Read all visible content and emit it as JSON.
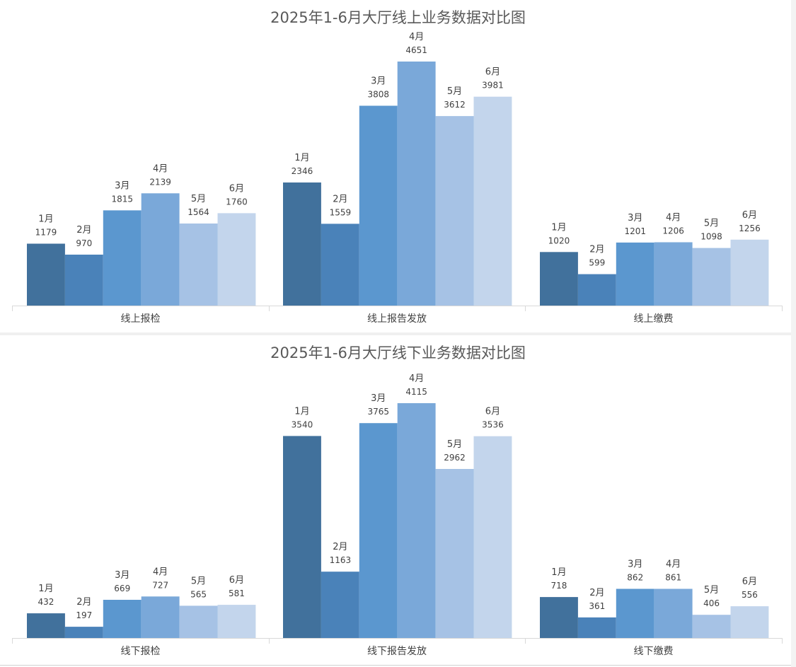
{
  "colors": {
    "months": [
      "#41719c",
      "#4a82b9",
      "#5b97cf",
      "#7aa8d9",
      "#a6c2e5",
      "#c3d5ec"
    ],
    "axis": "#d9d9d9",
    "label_text": "#404040"
  },
  "chart_data": [
    {
      "type": "bar",
      "title": "2025年1-6月大厅线上业务数据对比图",
      "categories": [
        "线上报检",
        "线上报告发放",
        "线上缴费"
      ],
      "series": [
        {
          "name": "1月",
          "values": [
            1179,
            2346,
            1020
          ]
        },
        {
          "name": "2月",
          "values": [
            970,
            1559,
            599
          ]
        },
        {
          "name": "3月",
          "values": [
            1815,
            3808,
            1201
          ]
        },
        {
          "name": "4月",
          "values": [
            2139,
            4651,
            1206
          ]
        },
        {
          "name": "5月",
          "values": [
            1564,
            3612,
            1098
          ]
        },
        {
          "name": "6月",
          "values": [
            1760,
            3981,
            1256
          ]
        }
      ],
      "ylim": [
        0,
        4651
      ],
      "grid": false,
      "legend": "none"
    },
    {
      "type": "bar",
      "title": "2025年1-6月大厅线下业务数据对比图",
      "categories": [
        "线下报检",
        "线下报告发放",
        "线下缴费"
      ],
      "series": [
        {
          "name": "1月",
          "values": [
            432,
            3540,
            718
          ]
        },
        {
          "name": "2月",
          "values": [
            197,
            1163,
            361
          ]
        },
        {
          "name": "3月",
          "values": [
            669,
            3765,
            862
          ]
        },
        {
          "name": "4月",
          "values": [
            727,
            4115,
            861
          ]
        },
        {
          "name": "5月",
          "values": [
            565,
            2962,
            406
          ]
        },
        {
          "name": "6月",
          "values": [
            581,
            3536,
            556
          ]
        }
      ],
      "ylim": [
        0,
        4115
      ],
      "grid": false,
      "legend": "none"
    }
  ]
}
